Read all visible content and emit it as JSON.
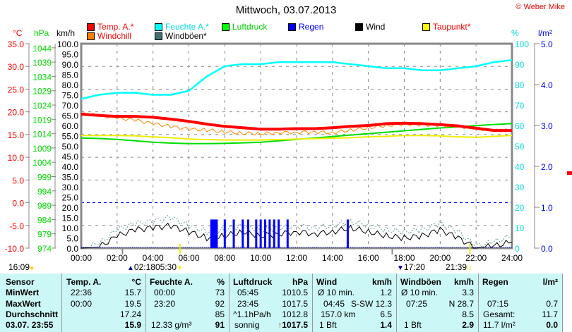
{
  "header": {
    "title": "Mittwoch, 03.07.2013",
    "copyright": "© Weber Mike"
  },
  "legend": [
    {
      "label": "Temp. A.*",
      "color": "#ff0000",
      "text_color": "#ff0000"
    },
    {
      "label": "Feuchte A.*",
      "color": "#00ffff",
      "text_color": "#00e0e0"
    },
    {
      "label": "Luftdruck",
      "color": "#00ff00",
      "text_color": "#00d000"
    },
    {
      "label": "Regen",
      "color": "#0000ff",
      "text_color": "#0000ff"
    },
    {
      "label": "Wind",
      "color": "#000000",
      "text_color": "#000000"
    },
    {
      "label": "Taupunkt*",
      "color": "#ffff00",
      "text_color": "#ff0000"
    },
    {
      "label": "Windchill",
      "color": "#ff8000",
      "text_color": "#ff0000"
    },
    {
      "label": "Windböen*",
      "color": "#407070",
      "text_color": "#000000"
    }
  ],
  "chart_data": {
    "type": "line",
    "x_label_ticks": [
      "00:00",
      "02:00",
      "04:00",
      "06:00",
      "08:00",
      "10:00",
      "12:00",
      "14:00",
      "16:00",
      "18:00",
      "20:00",
      "22:00",
      "24:00"
    ],
    "axes": {
      "temp": {
        "unit": "°C",
        "range": [
          -10,
          35
        ],
        "ticks": [
          "35.0",
          "30.0",
          "25.0",
          "20.0",
          "15.0",
          "10.0",
          "5.0",
          "0.0",
          "-5.0",
          "-10.0"
        ]
      },
      "pressure": {
        "unit": "hPa",
        "range": [
          974,
          1044
        ],
        "ticks": [
          "1044",
          "1039",
          "1034",
          "1029",
          "1024",
          "1019",
          "1014",
          "1009",
          "1004",
          "999",
          "994",
          "989",
          "984",
          "979",
          "974"
        ]
      },
      "wind": {
        "unit": "km/h",
        "range": [
          0,
          100
        ],
        "ticks": [
          "100.0",
          "95.0",
          "90.0",
          "85.0",
          "80.0",
          "75.0",
          "70.0",
          "65.0",
          "60.0",
          "55.0",
          "50.0",
          "45.0",
          "40.0",
          "35.0",
          "30.0",
          "25.0",
          "20.0",
          "15.0",
          "10.0",
          "5.0",
          "0.0"
        ]
      },
      "humidity": {
        "unit": "%",
        "range": [
          0,
          100
        ],
        "ticks": [
          "100",
          "90",
          "80",
          "70",
          "60",
          "50",
          "40",
          "30",
          "20",
          "10",
          "0"
        ]
      },
      "rain": {
        "unit": "l/m²",
        "range": [
          0,
          5
        ],
        "ticks": [
          "5.0",
          "4.0",
          "3.0",
          "2.0",
          "1.0",
          "0.0"
        ]
      }
    },
    "hours": [
      0,
      1,
      2,
      3,
      4,
      5,
      6,
      7,
      8,
      9,
      10,
      11,
      12,
      13,
      14,
      15,
      16,
      17,
      18,
      19,
      20,
      21,
      22,
      23,
      24
    ],
    "series": [
      {
        "name": "Temp. A.*",
        "axis": "temp",
        "values": [
          19.5,
          19.2,
          19.0,
          19.0,
          18.8,
          18.4,
          17.9,
          17.3,
          16.8,
          16.5,
          16.2,
          16.2,
          16.3,
          16.3,
          16.5,
          16.8,
          17.0,
          17.4,
          17.5,
          17.4,
          17.2,
          16.9,
          16.4,
          15.9,
          15.9
        ]
      },
      {
        "name": "Feuchte A.*",
        "axis": "humidity",
        "values": [
          73,
          75,
          76,
          76,
          75,
          75,
          77,
          84,
          89,
          90,
          90,
          91,
          91,
          91,
          91,
          90,
          89,
          88,
          88,
          87,
          87,
          88,
          89,
          91,
          92
        ]
      },
      {
        "name": "Luftdruck",
        "axis": "pressure",
        "values": [
          1012.5,
          1012.3,
          1012,
          1011.5,
          1011,
          1010.7,
          1010.5,
          1010.5,
          1010.6,
          1010.8,
          1011,
          1011.5,
          1012,
          1012.5,
          1013,
          1013.5,
          1014,
          1014.5,
          1015,
          1015.5,
          1016,
          1016.4,
          1016.8,
          1017.2,
          1017.5
        ]
      },
      {
        "name": "Taupunkt*",
        "axis": "temp",
        "values": [
          14.8,
          14.8,
          14.8,
          14.7,
          14.5,
          14.3,
          14.0,
          13.9,
          13.8,
          13.8,
          13.8,
          13.9,
          14.0,
          14.1,
          14.2,
          14.3,
          14.5,
          14.6,
          14.8,
          14.8,
          14.7,
          14.5,
          14.4,
          14.6,
          14.8
        ]
      },
      {
        "name": "Windchill",
        "axis": "temp",
        "values": [
          19.5,
          19.2,
          18.6,
          18.2,
          17.4,
          16.8,
          16.2,
          16.0,
          15.6,
          15.3,
          15.2,
          15.4,
          15.5,
          15.6,
          15.4,
          16.0,
          16.5,
          17.0,
          17.3,
          17.2,
          17.0,
          16.8,
          16.3,
          15.9,
          15.9
        ]
      },
      {
        "name": "Wind",
        "axis": "wind",
        "values": [
          0,
          0.5,
          6,
          9,
          10,
          11,
          8,
          5,
          6,
          8,
          6,
          7,
          8,
          7,
          8,
          10,
          8,
          6,
          5,
          6,
          9,
          5,
          0,
          1,
          3
        ]
      },
      {
        "name": "Windböen*",
        "axis": "wind",
        "values": [
          0,
          2,
          9,
          12,
          13,
          15,
          11,
          8,
          9,
          11,
          9,
          10,
          11,
          10,
          11,
          13,
          11,
          9,
          8,
          9,
          12,
          8,
          1,
          3,
          6
        ]
      }
    ],
    "rain_bars": {
      "axis": "rain",
      "hours": [
        7.25,
        7.35,
        7.45,
        7.55,
        8.0,
        8.5,
        9.0,
        9.3,
        9.75,
        10.0,
        10.25,
        10.5,
        10.75,
        11.0,
        11.5,
        14.85
      ],
      "values": [
        0.7,
        0.7,
        0.7,
        0.7,
        0.7,
        0.7,
        0.7,
        0.7,
        0.7,
        0.7,
        0.7,
        0.7,
        0.7,
        0.7,
        0.7,
        0.7
      ]
    },
    "reference_line": {
      "axis": "temp",
      "value": 0
    }
  },
  "astro": {
    "moon_set": "16:09",
    "moon_rise": "02:18",
    "sunrise": "05:30",
    "moon_event": "17:20",
    "sunset": "21:39",
    "sunrise_hour": 5.5,
    "sunset_hour": 21.65,
    "gray_marks": [
      2.3,
      17.33
    ]
  },
  "table": {
    "rows": [
      "Sensor",
      "MinWert",
      "MaxWert",
      "Durchschnitt",
      "03.07. 23:55"
    ],
    "temp": {
      "h": "Temp. A.",
      "u": "°C",
      "min_t": "22:36",
      "min": "15.7",
      "max_t": "00:00",
      "max": "19.5",
      "avg": "17.24",
      "cur": "15.9"
    },
    "hum": {
      "h": "Feuchte A.",
      "u": "%",
      "min_t": "00:00",
      "min": "73",
      "max_t": "23:20",
      "max": "92",
      "avg": "85",
      "abs": "12.33 g/m³",
      "cur": "91"
    },
    "press": {
      "h": "Luftdruck",
      "u": "hPa",
      "min_t": "05:45",
      "min": "1010.5",
      "max_t": "23:45",
      "max": "1017.5",
      "trend": "^1.1hPa/h",
      "avg": "1012.8",
      "fc": "sonnig",
      "arrow": "↑",
      "cur": "1017.5"
    },
    "wind": {
      "h": "Wind",
      "u": "km/h",
      "avg_l": "Ø 10 min.",
      "avg10": "1.2",
      "max_t": "04:45",
      "max": "S-SW 12.3",
      "dist": "157.0 km",
      "avg": "6.5",
      "bft": "1 Bft",
      "cur": "1.4"
    },
    "gust": {
      "h": "Windböen",
      "u": "km/h",
      "avg_l": "Ø 10 min.",
      "avg10": "3.3",
      "max_t": "07:25",
      "max": "N 28.7",
      "avg": "8.5",
      "bft": "1 Bft",
      "cur": "2.9"
    },
    "rain": {
      "h": "Regen",
      "u": "l/m²",
      "max_t": "07:15",
      "max": "0.7",
      "total_l": "Gesamt:",
      "total": "11.7",
      "day": "11.7 l/m²",
      "cur": "0.0"
    }
  }
}
